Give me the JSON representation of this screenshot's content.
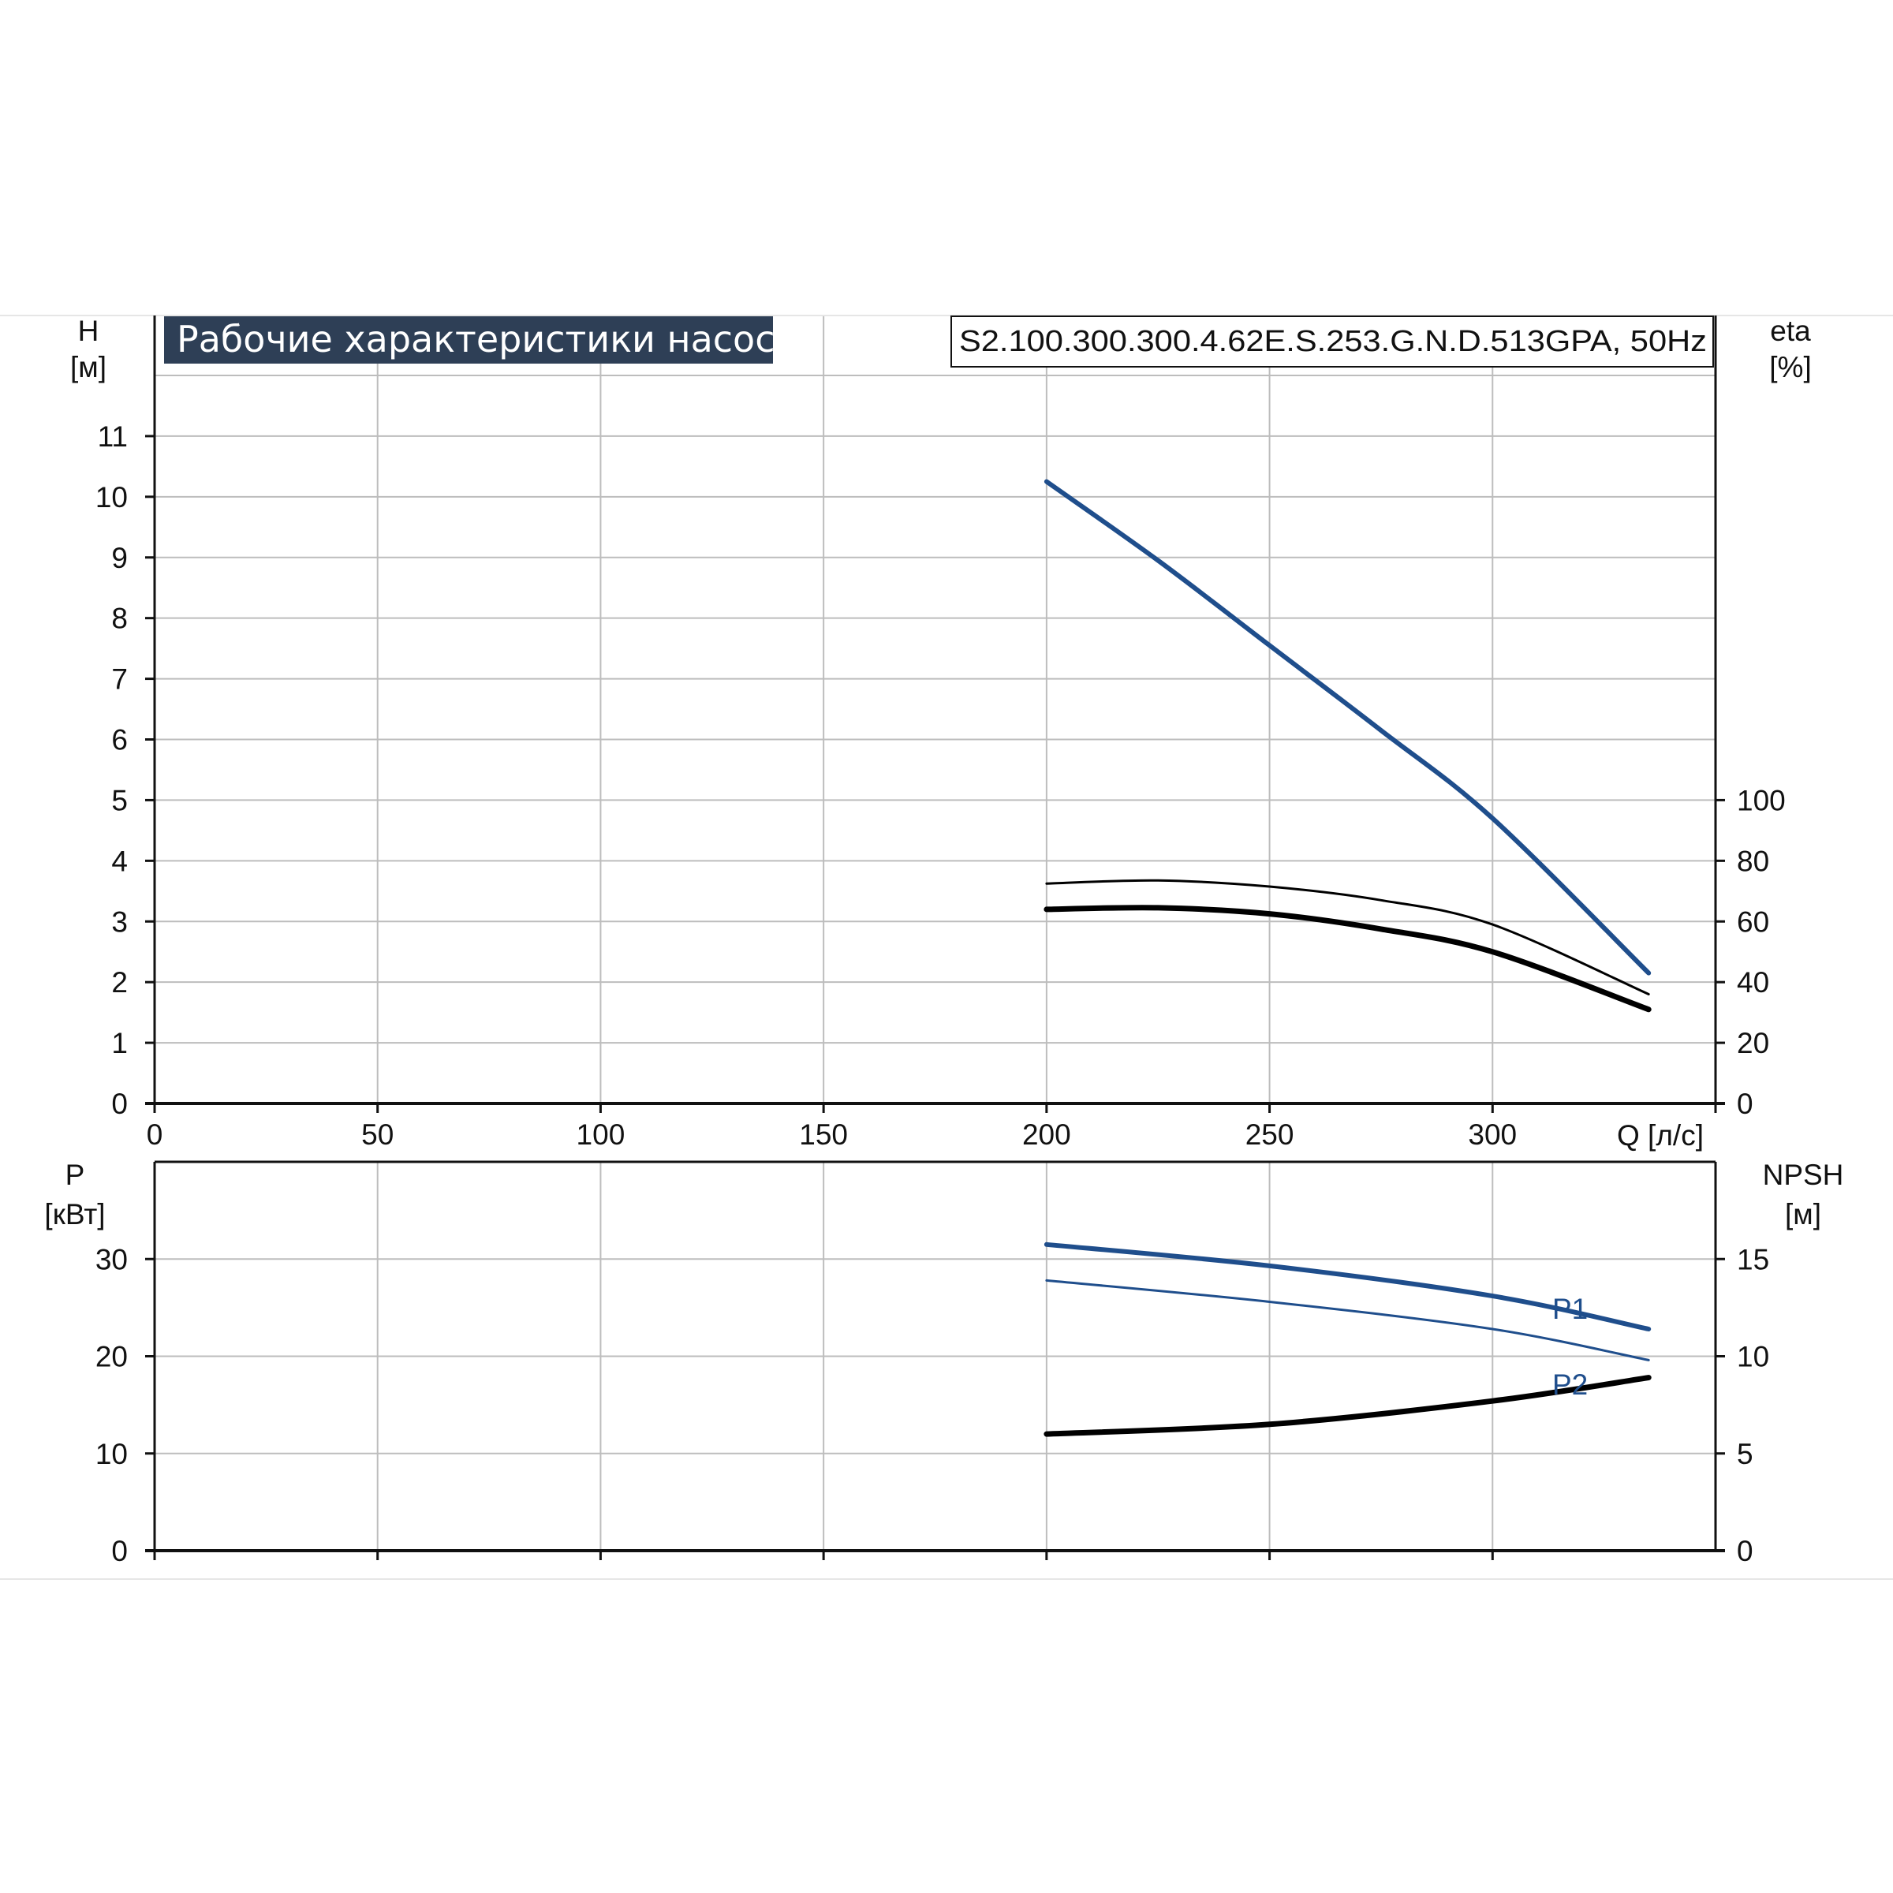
{
  "title": "Рабочие характеристики насоса",
  "model": "S2.100.300.300.4.62E.S.253.G.N.D.513GPA, 50Hz",
  "colors": {
    "blue": "#1f4e8c",
    "black": "#000000",
    "grid": "#bdbdbd",
    "title_bg": "#2e3f56"
  },
  "chart_data": [
    {
      "type": "line",
      "panel": "top",
      "x_axis": {
        "label": "Q [л/с]",
        "range": [
          0,
          350
        ],
        "ticks": [
          0,
          50,
          100,
          150,
          200,
          250,
          300
        ]
      },
      "y_left": {
        "label_line1": "H",
        "label_line2": "[м]",
        "range": [
          0,
          12
        ],
        "ticks": [
          0,
          1,
          2,
          3,
          4,
          5,
          6,
          7,
          8,
          9,
          10,
          11
        ]
      },
      "y_right": {
        "label_line1": "eta",
        "label_line2": "[%]",
        "range": [
          0,
          240
        ],
        "ticks": [
          0,
          20,
          40,
          60,
          80,
          100
        ]
      },
      "grid": true,
      "series": [
        {
          "axis": "left",
          "color": "#1f4e8c",
          "width": 6,
          "x": [
            200,
            225,
            250,
            275,
            300,
            335
          ],
          "y": [
            10.25,
            8.95,
            7.55,
            6.15,
            4.7,
            2.15
          ]
        },
        {
          "axis": "right",
          "color": "#000000",
          "width": 3,
          "x": [
            200,
            225,
            250,
            275,
            300,
            335
          ],
          "y": [
            72.5,
            73.5,
            71.5,
            67.0,
            59.0,
            36.0
          ]
        },
        {
          "axis": "right",
          "color": "#000000",
          "width": 7,
          "x": [
            200,
            225,
            250,
            275,
            300,
            335
          ],
          "y": [
            64.0,
            64.5,
            62.5,
            57.5,
            50.0,
            31.0
          ]
        }
      ]
    },
    {
      "type": "line",
      "panel": "bottom",
      "x_axis": {
        "range": [
          0,
          350
        ],
        "ticks": [
          0,
          50,
          100,
          150,
          200,
          250,
          300
        ]
      },
      "y_left": {
        "label_line1": "P",
        "label_line2": "[кВт]",
        "range": [
          0,
          40
        ],
        "ticks": [
          0,
          10,
          20,
          30
        ]
      },
      "y_right": {
        "label_line1": "NPSH",
        "label_line2": "[м]",
        "range": [
          0,
          20
        ],
        "ticks": [
          0,
          5,
          10,
          15
        ]
      },
      "grid": true,
      "series": [
        {
          "name": "P1",
          "axis": "left",
          "color": "#1f4e8c",
          "width": 6,
          "x": [
            200,
            250,
            300,
            335
          ],
          "y": [
            31.5,
            29.3,
            26.2,
            22.8
          ]
        },
        {
          "name": "P2",
          "axis": "left",
          "color": "#1f4e8c",
          "width": 3,
          "x": [
            200,
            250,
            300,
            335
          ],
          "y": [
            27.8,
            25.6,
            22.8,
            19.6
          ]
        },
        {
          "axis": "right",
          "color": "#000000",
          "width": 7,
          "x": [
            200,
            250,
            300,
            335
          ],
          "y": [
            6.0,
            6.5,
            7.7,
            8.9
          ]
        }
      ]
    }
  ]
}
